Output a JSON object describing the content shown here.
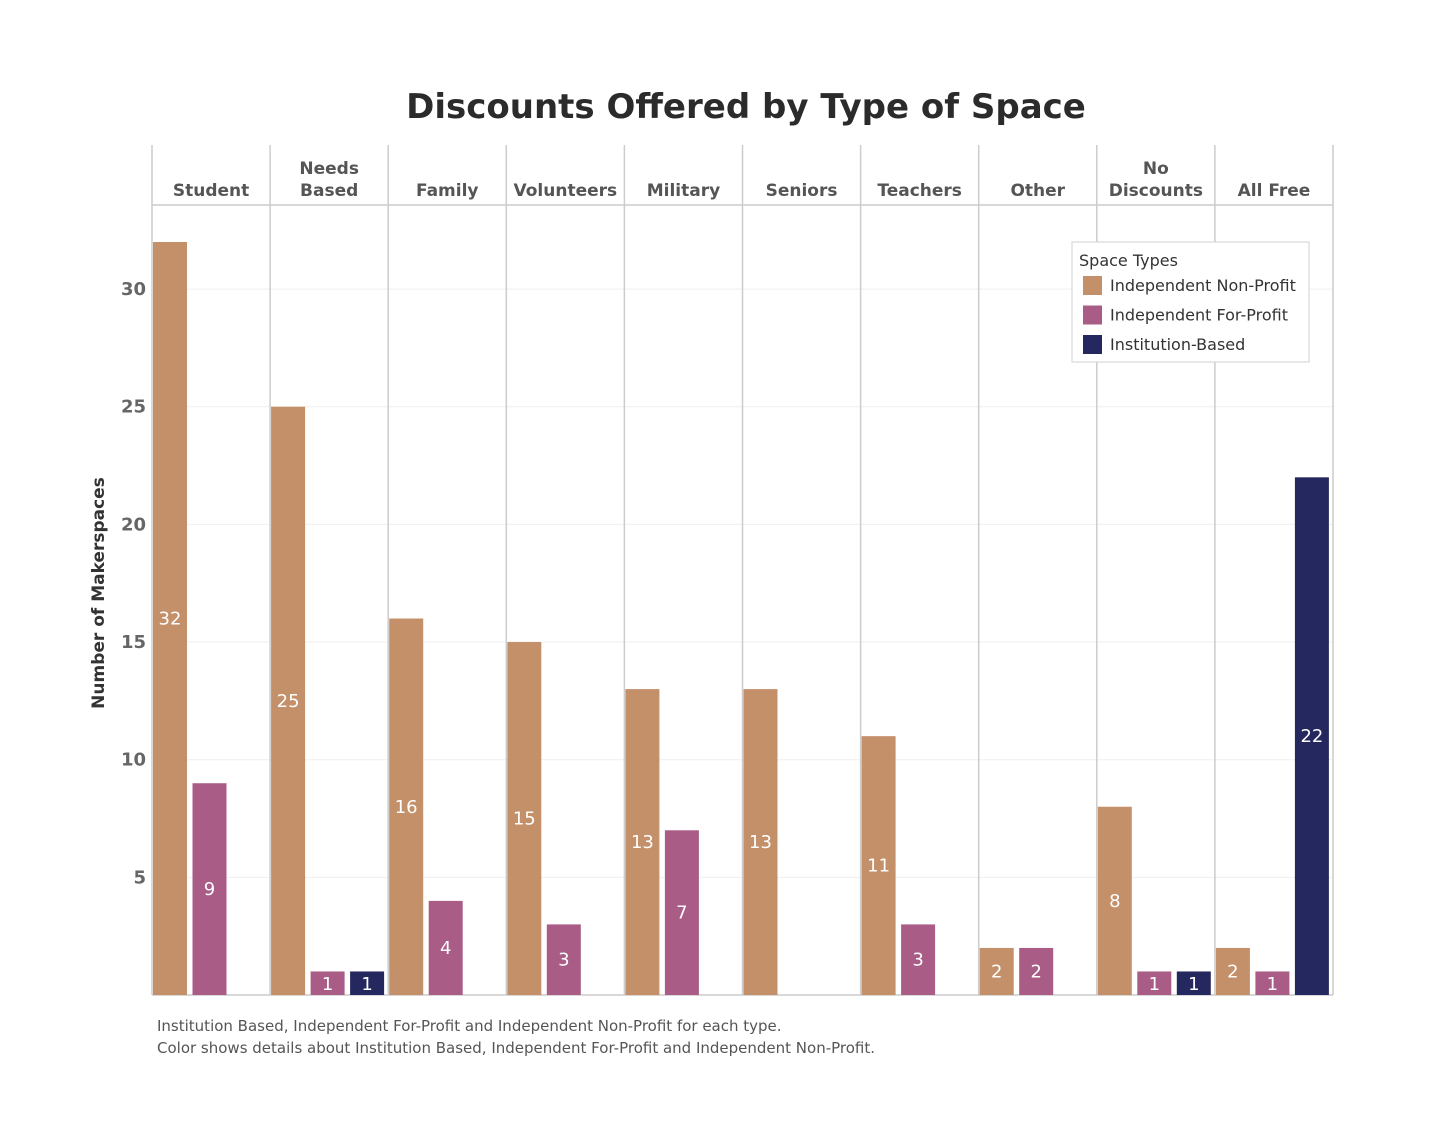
{
  "chart_data": {
    "type": "bar",
    "title": "Discounts Offered by Type of Space",
    "ylabel": "Number of Makerspaces",
    "xlabel": "",
    "ylim": [
      0,
      33
    ],
    "yticks": [
      5,
      10,
      15,
      20,
      25,
      30
    ],
    "grid": true,
    "categories": [
      [
        "Student"
      ],
      [
        "Needs",
        "Based"
      ],
      [
        "Family"
      ],
      [
        "Volunteers"
      ],
      [
        "Military"
      ],
      [
        "Seniors"
      ],
      [
        "Teachers"
      ],
      [
        "Other"
      ],
      [
        "No",
        "Discounts"
      ],
      [
        "All Free"
      ]
    ],
    "series": [
      {
        "name": "Independent Non-Profit",
        "color": "#c4906a",
        "values": [
          32,
          25,
          16,
          15,
          13,
          13,
          11,
          2,
          8,
          2
        ]
      },
      {
        "name": "Independent For-Profit",
        "color": "#a95c86",
        "values": [
          9,
          1,
          4,
          3,
          7,
          null,
          3,
          2,
          1,
          1
        ]
      },
      {
        "name": "Institution-Based",
        "color": "#25285e",
        "values": [
          null,
          1,
          null,
          null,
          null,
          null,
          null,
          null,
          1,
          22
        ]
      }
    ],
    "legend": {
      "title": "Space Types",
      "position": "top-right"
    }
  },
  "footnotes": [
    "Institution Based, Independent For-Profit and Independent Non-Profit for each type.",
    "Color shows details about Institution Based, Independent For-Profit and Independent Non-Profit."
  ]
}
